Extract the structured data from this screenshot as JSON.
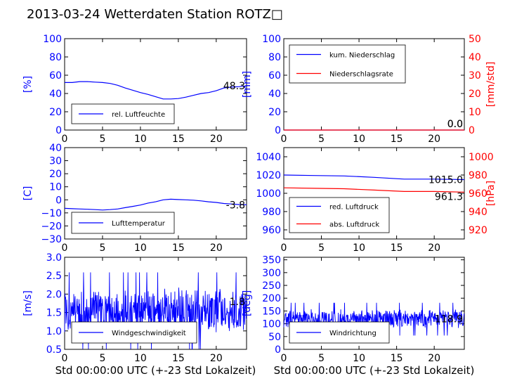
{
  "title": "2013-03-24 Wetterdaten Station ROTZ□",
  "colors": {
    "primary": "#0000ff",
    "secondary": "#ff0000",
    "frame": "#000000"
  },
  "xlabel": "Std 00:00:00 UTC (+-23 Std Lokalzeit)",
  "chart_data": [
    {
      "id": "humidity",
      "type": "line",
      "ylabel": "[%]",
      "xlim": [
        0,
        24
      ],
      "ylim": [
        0,
        100
      ],
      "yticks": [
        "0",
        "20",
        "40",
        "60",
        "80",
        "100"
      ],
      "xticks": [
        "0",
        "5",
        "10",
        "15",
        "20"
      ],
      "legend": "bottom-left",
      "last_value_label": "48.3",
      "series": [
        {
          "name": "rel. Luftfeuchte",
          "color": "#0000ff",
          "x": [
            0,
            1,
            2,
            3,
            4,
            5,
            6,
            7,
            8,
            9,
            10,
            11,
            12,
            13,
            14,
            15,
            16,
            17,
            18,
            19,
            20,
            21,
            22,
            23,
            24
          ],
          "values": [
            52,
            52,
            53,
            53,
            52.5,
            52,
            51,
            49,
            46,
            43.5,
            41,
            39,
            36.5,
            34,
            34,
            34.5,
            36,
            38,
            40,
            41,
            43,
            46,
            47,
            47.5,
            48.3
          ]
        }
      ]
    },
    {
      "id": "precip",
      "type": "line",
      "ylabel": "[mm]",
      "ylabel_right": "[mm/std]",
      "xlim": [
        0,
        24
      ],
      "ylim": [
        0,
        100
      ],
      "ylim_right": [
        0,
        50
      ],
      "yticks": [
        "0",
        "20",
        "40",
        "60",
        "80",
        "100"
      ],
      "yticks_right": [
        "0",
        "10",
        "20",
        "30",
        "40",
        "50"
      ],
      "xticks": [
        "0",
        "5",
        "10",
        "15",
        "20"
      ],
      "legend": "top-left",
      "last_value_label": "0.0",
      "last_value_label_right": "0.0",
      "series": [
        {
          "name": "kum. Niederschlag",
          "color": "#0000ff",
          "x": [
            0,
            24
          ],
          "values": [
            0,
            0
          ]
        },
        {
          "name": "Niederschlagsrate",
          "color": "#ff0000",
          "x": [
            0,
            24
          ],
          "values": [
            0,
            0
          ],
          "axis": "right"
        }
      ]
    },
    {
      "id": "temperature",
      "type": "line",
      "ylabel": "[C]",
      "xlim": [
        0,
        24
      ],
      "ylim": [
        -30,
        40
      ],
      "yticks": [
        "−30",
        "−20",
        "−10",
        "0",
        "10",
        "20",
        "30",
        "40"
      ],
      "xticks": [
        "0",
        "5",
        "10",
        "15",
        "20"
      ],
      "legend": "bottom-left",
      "last_value_label": "-3.8",
      "series": [
        {
          "name": "Lufttemperatur",
          "color": "#0000ff",
          "x": [
            0,
            1,
            2,
            3,
            4,
            5,
            6,
            7,
            8,
            9,
            10,
            11,
            12,
            13,
            14,
            15,
            16,
            17,
            18,
            19,
            20,
            21,
            22,
            23,
            24
          ],
          "values": [
            -6.5,
            -6.8,
            -7,
            -7.2,
            -7.5,
            -7.8,
            -7.5,
            -7,
            -6,
            -5,
            -4,
            -2.5,
            -1.5,
            0,
            0.5,
            0.2,
            0,
            -0.3,
            -0.8,
            -1.5,
            -2,
            -2.8,
            -3.2,
            -3.6,
            -3.8
          ]
        }
      ]
    },
    {
      "id": "pressure",
      "type": "line",
      "ylabel_right": "[hPa]",
      "xlim": [
        0,
        24
      ],
      "ylim": [
        950,
        1050
      ],
      "ylim_right": [
        910,
        1010
      ],
      "yticks": [
        "960",
        "980",
        "1000",
        "1020",
        "1040"
      ],
      "yticks_right": [
        "920",
        "940",
        "960",
        "980",
        "1000"
      ],
      "xticks": [
        "0",
        "5",
        "10",
        "15",
        "20"
      ],
      "legend": "bottom-left",
      "last_value_label": "1015.0",
      "last_value_label_right": "961.3",
      "series": [
        {
          "name": "red. Luftdruck",
          "color": "#0000ff",
          "x": [
            0,
            4,
            8,
            12,
            16,
            20,
            24
          ],
          "values": [
            1020,
            1019.5,
            1019,
            1017.5,
            1015.5,
            1015.5,
            1015
          ]
        },
        {
          "name": "abs. Luftdruck",
          "color": "#ff0000",
          "axis": "right",
          "x": [
            0,
            4,
            8,
            12,
            16,
            20,
            24
          ],
          "values": [
            966,
            965.5,
            965,
            963.5,
            962,
            962,
            961.3
          ]
        }
      ]
    },
    {
      "id": "wind_speed",
      "type": "line",
      "ylabel": "[m/s]",
      "xlim": [
        0,
        24
      ],
      "ylim": [
        0.5,
        3.0
      ],
      "yticks": [
        "0.5",
        "1.0",
        "1.5",
        "2.0",
        "2.5",
        "3.0"
      ],
      "xticks": [
        "0",
        "5",
        "10",
        "15",
        "20"
      ],
      "legend": "bottom-left",
      "last_value_label": "1.8",
      "series": [
        {
          "name": "Windgeschwindigkeit",
          "color": "#0000ff",
          "noisy": true,
          "mean": 1.55,
          "amp": 0.65,
          "x": [
            0,
            24
          ],
          "values": [
            1.6,
            1.8
          ]
        }
      ]
    },
    {
      "id": "wind_dir",
      "type": "line",
      "ylabel": "[deg]",
      "xlim": [
        0,
        24
      ],
      "ylim": [
        0,
        360
      ],
      "yticks": [
        "0",
        "50",
        "100",
        "150",
        "200",
        "250",
        "300",
        "350"
      ],
      "xticks": [
        "0",
        "5",
        "10",
        "15",
        "20"
      ],
      "legend": "bottom-left",
      "last_value_label": "118.9",
      "series": [
        {
          "name": "Windrichtung",
          "color": "#0000ff",
          "noisy": true,
          "mean": 118,
          "amp": 40,
          "x": [
            0,
            24
          ],
          "values": [
            110,
            118.9
          ]
        }
      ]
    }
  ]
}
